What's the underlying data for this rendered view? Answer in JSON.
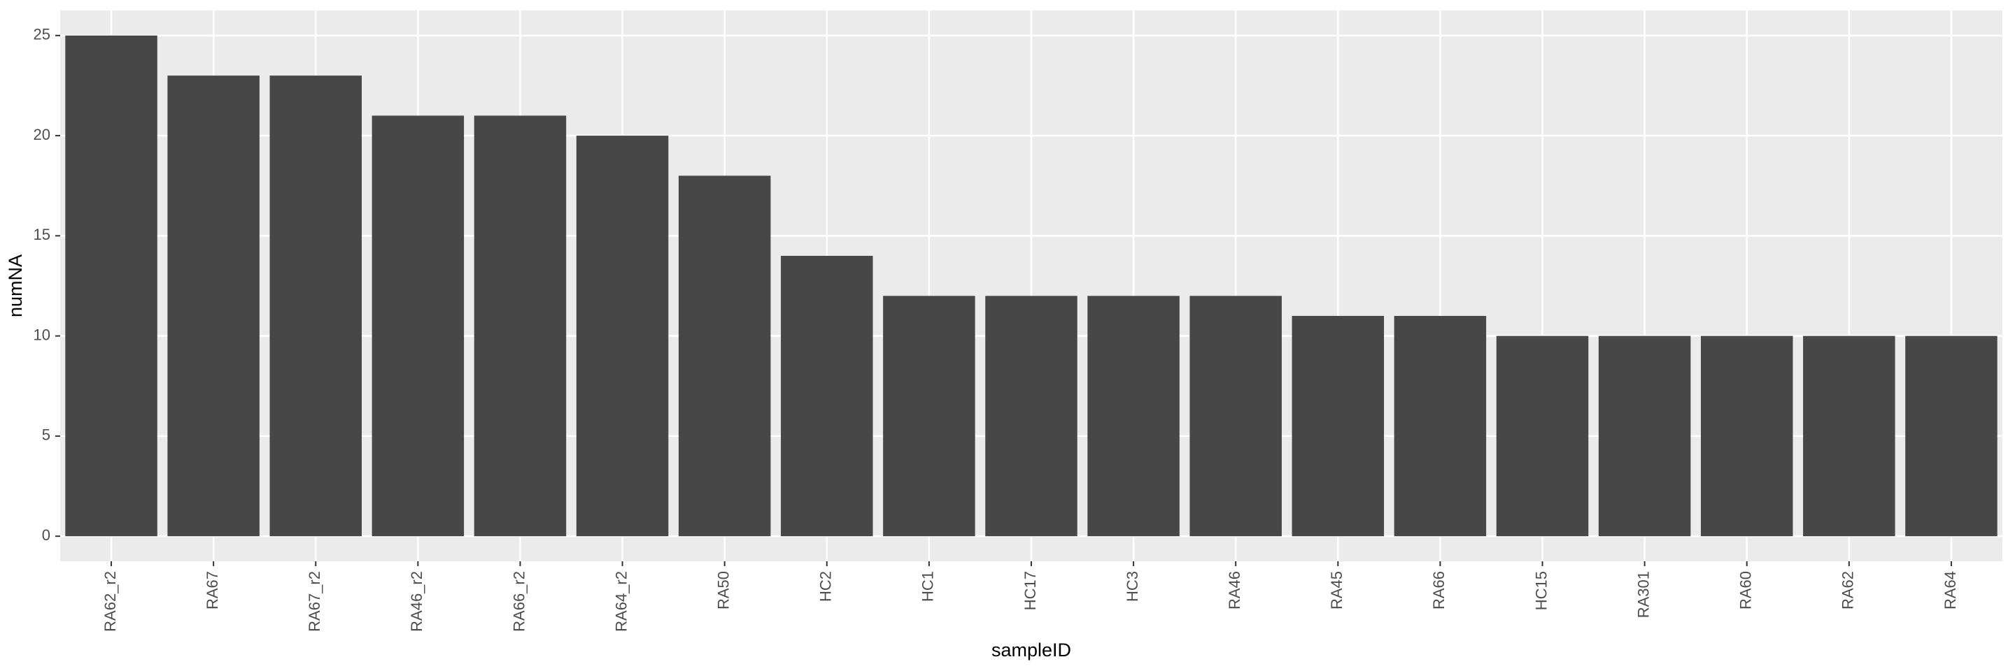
{
  "chart_data": {
    "type": "bar",
    "x_label": "sampleID",
    "y_label": "numNA",
    "categories": [
      "RA62_r2",
      "RA67",
      "RA67_r2",
      "RA46_r2",
      "RA66_r2",
      "RA64_r2",
      "RA50",
      "HC2",
      "HC1",
      "HC17",
      "HC3",
      "RA46",
      "RA45",
      "RA66",
      "HC15",
      "RA301",
      "RA60",
      "RA62",
      "RA64"
    ],
    "values": [
      25,
      23,
      23,
      21,
      21,
      20,
      18,
      14,
      12,
      12,
      12,
      12,
      11,
      11,
      10,
      10,
      10,
      10,
      10
    ],
    "color": "#474747",
    "ylim": [
      -1.25,
      26.25
    ],
    "yticks": [
      0,
      5,
      10,
      15,
      20,
      25
    ],
    "grid": true
  }
}
